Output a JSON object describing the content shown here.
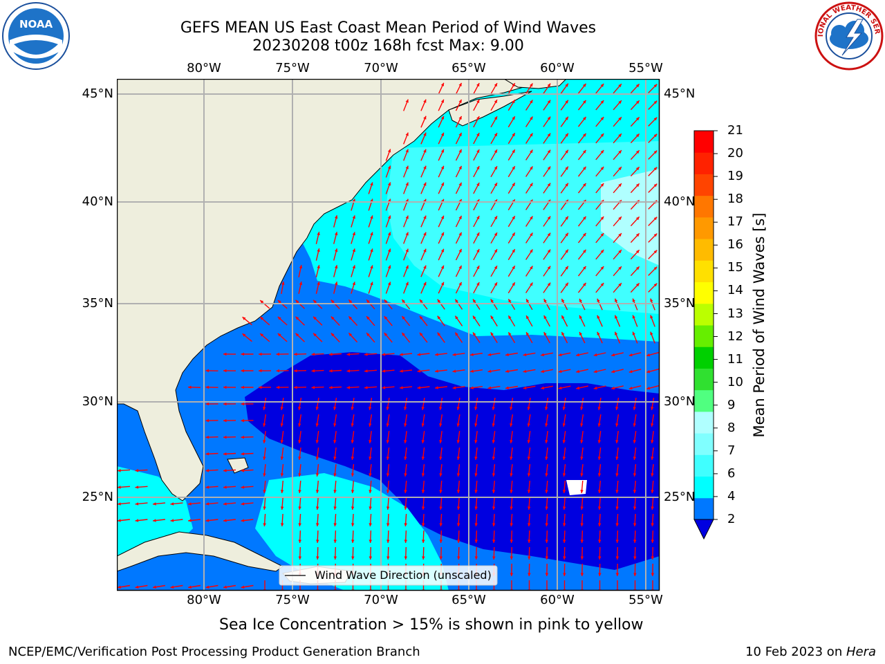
{
  "header": {
    "title_line1": "GEFS MEAN US East Coast Mean Period of Wind Waves",
    "title_line2": "20230208 t00z 168h fcst   Max: 9.00"
  },
  "logos": {
    "left": {
      "name": "noaa-logo",
      "text": "NOAA"
    },
    "right": {
      "name": "nws-logo",
      "text": "NATIONAL WEATHER SERVICE"
    }
  },
  "map": {
    "lon_labels": [
      "80°W",
      "75°W",
      "70°W",
      "65°W",
      "60°W",
      "55°W"
    ],
    "lat_labels": [
      "45°N",
      "40°N",
      "35°N",
      "30°N",
      "25°N"
    ],
    "legend_text": "Wind Wave Direction (unscaled)",
    "colors": {
      "land": "#eeeedd",
      "arrow": "#ff0000",
      "grid": "#b0b0b0"
    }
  },
  "colorbar": {
    "label": "Mean Period of Wind Waves [s]",
    "ticks": [
      "21",
      "20",
      "19",
      "18",
      "17",
      "16",
      "15",
      "14",
      "13",
      "12",
      "11",
      "10",
      "9",
      "8",
      "7",
      "6",
      "4",
      "2"
    ],
    "colors": [
      "#0000e0",
      "#0078ff",
      "#00ffff",
      "#40ffff",
      "#80ffff",
      "#b0ffff",
      "#50ff80",
      "#30e030",
      "#00d000",
      "#66ee00",
      "#bbff00",
      "#ffff00",
      "#ffe000",
      "#ffbb00",
      "#ff9900",
      "#ff7700",
      "#ff4400",
      "#ff2200",
      "#ff0000"
    ]
  },
  "notes": {
    "sea_ice": "Sea Ice Concentration > 15% is shown in pink to yellow",
    "footer_left": "NCEP/EMC/Verification Post Processing Product Generation Branch",
    "footer_right_prefix": "10 Feb 2023 on ",
    "footer_right_machine": "Hera"
  }
}
